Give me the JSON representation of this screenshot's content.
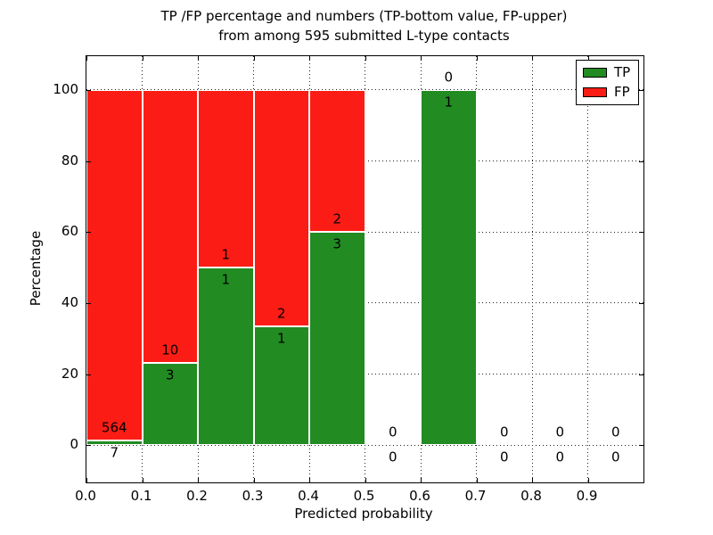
{
  "figure": {
    "title_line1": "TP /FP percentage and numbers (TP-bottom value, FP-upper)",
    "title_line2": "from among 595 submitted L-type contacts"
  },
  "chart_data": {
    "type": "bar",
    "stacked": true,
    "normalized_to_percent": true,
    "title": "TP /FP percentage and numbers (TP-bottom value, FP-upper) from among 595 submitted L-type contacts",
    "xlabel": "Predicted probability",
    "ylabel": "Percentage",
    "xlim": [
      0.0,
      1.0
    ],
    "ylim": [
      -10.5,
      109.5
    ],
    "grid": "dotted",
    "bin_width": 0.1,
    "bin_starts": [
      0.0,
      0.1,
      0.2,
      0.3,
      0.4,
      0.5,
      0.6,
      0.7,
      0.8,
      0.9
    ],
    "x_tick_values": [
      0.0,
      0.1,
      0.2,
      0.3,
      0.4,
      0.5,
      0.6,
      0.7,
      0.8,
      0.9
    ],
    "x_tick_labels": [
      "0.0",
      "0.1",
      "0.2",
      "0.3",
      "0.4",
      "0.5",
      "0.6",
      "0.7",
      "0.8",
      "0.9"
    ],
    "y_tick_values": [
      0,
      20,
      40,
      60,
      80,
      100
    ],
    "y_tick_labels": [
      "0",
      "20",
      "40",
      "60",
      "80",
      "100"
    ],
    "series": [
      {
        "name": "TP",
        "color": "#228b22",
        "counts": [
          7,
          3,
          1,
          1,
          3,
          0,
          1,
          0,
          0,
          0
        ]
      },
      {
        "name": "FP",
        "color": "#fb1d15",
        "counts": [
          564,
          10,
          1,
          2,
          2,
          0,
          0,
          0,
          0,
          0
        ]
      }
    ],
    "tp_percent_of_bin": [
      1.23,
      23.08,
      50.0,
      33.33,
      60.0,
      0,
      100.0,
      0,
      0,
      0
    ],
    "annotation_rule": "FP count printed above top of green TP segment, TP count printed below it; zero bins annotated 0 over 0 at baseline",
    "legend": {
      "position": "upper right",
      "entries": [
        {
          "label": "TP",
          "color": "#228b22"
        },
        {
          "label": "FP",
          "color": "#fb1d15"
        }
      ]
    }
  }
}
